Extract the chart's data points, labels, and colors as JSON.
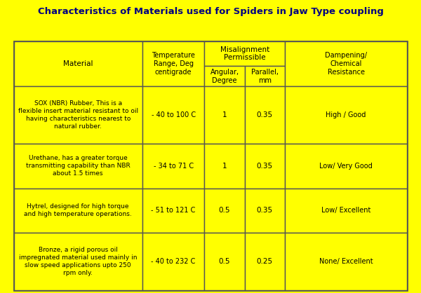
{
  "title": "Characteristics of Materials used for Spiders in Jaw Type coupling",
  "background_color": "#FFFF00",
  "title_color": "#000080",
  "border_color": "#555555",
  "cell_text_color": "#000000",
  "header_bg": "#FFFF00",
  "col_headers": [
    "Material",
    "Temperature\nRange, Deg\ncentigrade",
    "Misalignment\nPermissible",
    "Dampening/\nChemical\nResistance"
  ],
  "sub_headers": [
    "Angular,\nDegree",
    "Parallel,\nmm"
  ],
  "rows": [
    {
      "material_bold": "SOX (NBR) Rubber",
      "material_rest": ", This is a flexible insert material resistant to oil having characteristics nearest to natural rubber.",
      "temp": "- 40 to 100 C",
      "angular": "1",
      "parallel": "0.35",
      "dampening": "High / Good"
    },
    {
      "material_bold": "Urethane",
      "material_rest": ", has a greater torque transmitting capability than NBR about 1.5 times",
      "temp": "- 34 to 71 C",
      "angular": "1",
      "parallel": "0.35",
      "dampening": "Low/ Very Good"
    },
    {
      "material_bold": "Hytrel",
      "material_rest": ", designed for high torque and high temperature operations.",
      "temp": "- 51 to 121 C",
      "angular": "0.5",
      "parallel": "0.35",
      "dampening": "Low/ Excellent"
    },
    {
      "material_bold": "Bronze",
      "material_rest": ", a rigid porous oil impregnated material used mainly in slow speed applications upto 250 rpm only.",
      "temp": "- 40 to 232 C",
      "angular": "0.5",
      "parallel": "0.25",
      "dampening": "None/ Excellent"
    }
  ]
}
